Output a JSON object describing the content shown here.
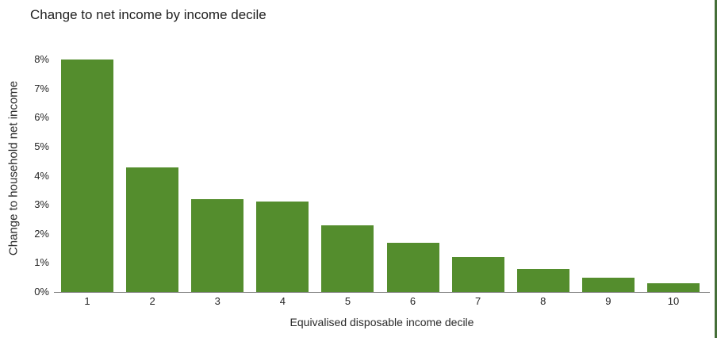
{
  "chart_data": {
    "type": "bar",
    "title": "Change to net income by income decile",
    "xlabel": "Equivalised disposable income decile",
    "ylabel": "Change to household net income",
    "categories": [
      "1",
      "2",
      "3",
      "4",
      "5",
      "6",
      "7",
      "8",
      "9",
      "10"
    ],
    "values": [
      8.0,
      4.3,
      3.2,
      3.1,
      2.3,
      1.7,
      1.2,
      0.8,
      0.5,
      0.3
    ],
    "ylim": [
      0,
      8
    ],
    "ytick_step": 1,
    "ytick_suffix": "%",
    "grid": false,
    "legend": false,
    "bar_color": "#548d2d"
  },
  "style": {
    "accent_border_color": "#456e38",
    "axis_line_color": "#7f7f7f",
    "text_color": "#212121"
  }
}
